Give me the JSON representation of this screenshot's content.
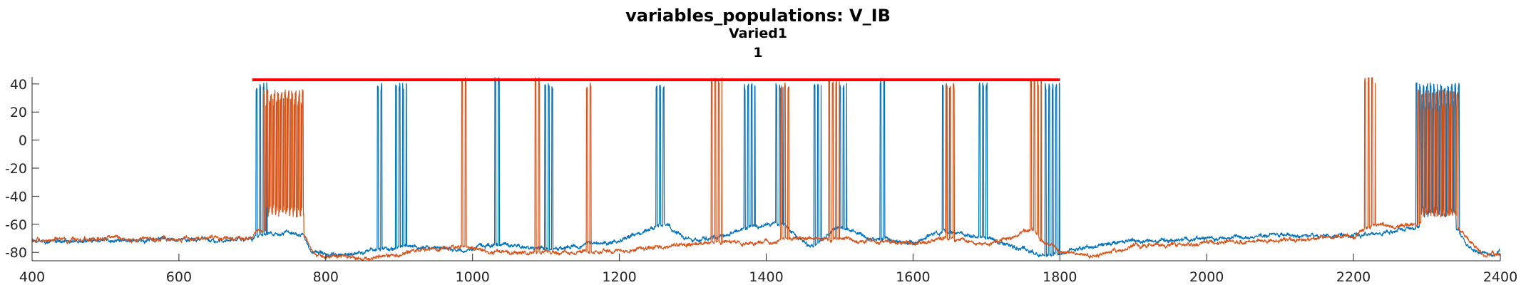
{
  "chart_data": {
    "type": "line",
    "title": "variables_populations: V_IB",
    "subtitle_lines": [
      "Varied1",
      "1"
    ],
    "xlabel": "",
    "ylabel": "",
    "xlim": [
      400,
      2400
    ],
    "ylim": [
      -86,
      45
    ],
    "xticks": [
      400,
      600,
      800,
      1000,
      1200,
      1400,
      1600,
      1800,
      2000,
      2200,
      2400
    ],
    "yticks": [
      -80,
      -60,
      -40,
      -20,
      0,
      20,
      40
    ],
    "grid": false,
    "legend": "none",
    "stimulus_bar": {
      "x_start": 700,
      "x_end": 1800,
      "y": 43,
      "color": "#ff0000"
    },
    "series": [
      {
        "color": "#0072bd",
        "baseline": [
          [
            400,
            -72
          ],
          [
            700,
            -71
          ],
          [
            705,
            -67
          ],
          [
            770,
            -67
          ],
          [
            780,
            -80
          ],
          [
            820,
            -82
          ],
          [
            870,
            -78
          ],
          [
            930,
            -76
          ],
          [
            990,
            -80
          ],
          [
            1030,
            -74
          ],
          [
            1100,
            -78
          ],
          [
            1200,
            -72
          ],
          [
            1260,
            -60
          ],
          [
            1300,
            -72
          ],
          [
            1340,
            -68
          ],
          [
            1380,
            -62
          ],
          [
            1420,
            -60
          ],
          [
            1460,
            -76
          ],
          [
            1500,
            -62
          ],
          [
            1540,
            -70
          ],
          [
            1600,
            -73
          ],
          [
            1640,
            -64
          ],
          [
            1700,
            -70
          ],
          [
            1760,
            -80
          ],
          [
            1800,
            -82
          ],
          [
            1820,
            -77
          ],
          [
            1900,
            -72
          ],
          [
            2000,
            -70
          ],
          [
            2100,
            -68
          ],
          [
            2200,
            -68
          ],
          [
            2240,
            -66
          ],
          [
            2270,
            -64
          ],
          [
            2290,
            -62
          ],
          [
            2340,
            -62
          ],
          [
            2360,
            -78
          ],
          [
            2390,
            -82
          ],
          [
            2400,
            -78
          ]
        ],
        "bursts": [
          [
            705,
            720,
            35
          ],
          [
            870,
            878,
            35
          ],
          [
            895,
            910,
            35
          ],
          [
            1030,
            1037,
            40
          ],
          [
            1098,
            1110,
            35
          ],
          [
            1250,
            1262,
            35
          ],
          [
            1370,
            1385,
            35
          ],
          [
            1413,
            1423,
            35
          ],
          [
            1465,
            1475,
            35
          ],
          [
            1500,
            1510,
            35
          ],
          [
            1555,
            1562,
            40
          ],
          [
            1640,
            1650,
            35
          ],
          [
            1690,
            1702,
            35
          ],
          [
            1780,
            1800,
            35
          ],
          [
            2285,
            2345,
            35
          ]
        ],
        "plateaus": [
          [
            2290,
            2340,
            -52,
            28
          ]
        ]
      },
      {
        "color": "#d95319",
        "baseline": [
          [
            400,
            -71
          ],
          [
            600,
            -70
          ],
          [
            700,
            -70
          ],
          [
            705,
            -64
          ],
          [
            770,
            -67
          ],
          [
            785,
            -82
          ],
          [
            860,
            -84
          ],
          [
            930,
            -79
          ],
          [
            980,
            -76
          ],
          [
            1030,
            -80
          ],
          [
            1100,
            -80
          ],
          [
            1200,
            -79
          ],
          [
            1260,
            -76
          ],
          [
            1330,
            -72
          ],
          [
            1380,
            -74
          ],
          [
            1420,
            -70
          ],
          [
            1480,
            -70
          ],
          [
            1530,
            -72
          ],
          [
            1600,
            -74
          ],
          [
            1650,
            -70
          ],
          [
            1700,
            -75
          ],
          [
            1760,
            -64
          ],
          [
            1800,
            -80
          ],
          [
            1850,
            -82
          ],
          [
            1900,
            -76
          ],
          [
            2000,
            -73
          ],
          [
            2100,
            -72
          ],
          [
            2200,
            -68
          ],
          [
            2230,
            -60
          ],
          [
            2260,
            -62
          ],
          [
            2300,
            -58
          ],
          [
            2340,
            -60
          ],
          [
            2360,
            -74
          ],
          [
            2380,
            -83
          ],
          [
            2400,
            -80
          ]
        ],
        "bursts": [
          [
            715,
            770,
            30
          ],
          [
            985,
            992,
            40
          ],
          [
            1085,
            1092,
            40
          ],
          [
            1155,
            1162,
            35
          ],
          [
            1325,
            1340,
            40
          ],
          [
            1420,
            1432,
            35
          ],
          [
            1485,
            1500,
            38
          ],
          [
            1645,
            1658,
            35
          ],
          [
            1760,
            1775,
            38
          ],
          [
            2215,
            2230,
            40
          ],
          [
            2288,
            2345,
            30
          ]
        ],
        "plateaus": [
          [
            718,
            770,
            -50,
            30
          ],
          [
            2292,
            2342,
            -54,
            26
          ]
        ]
      }
    ]
  }
}
